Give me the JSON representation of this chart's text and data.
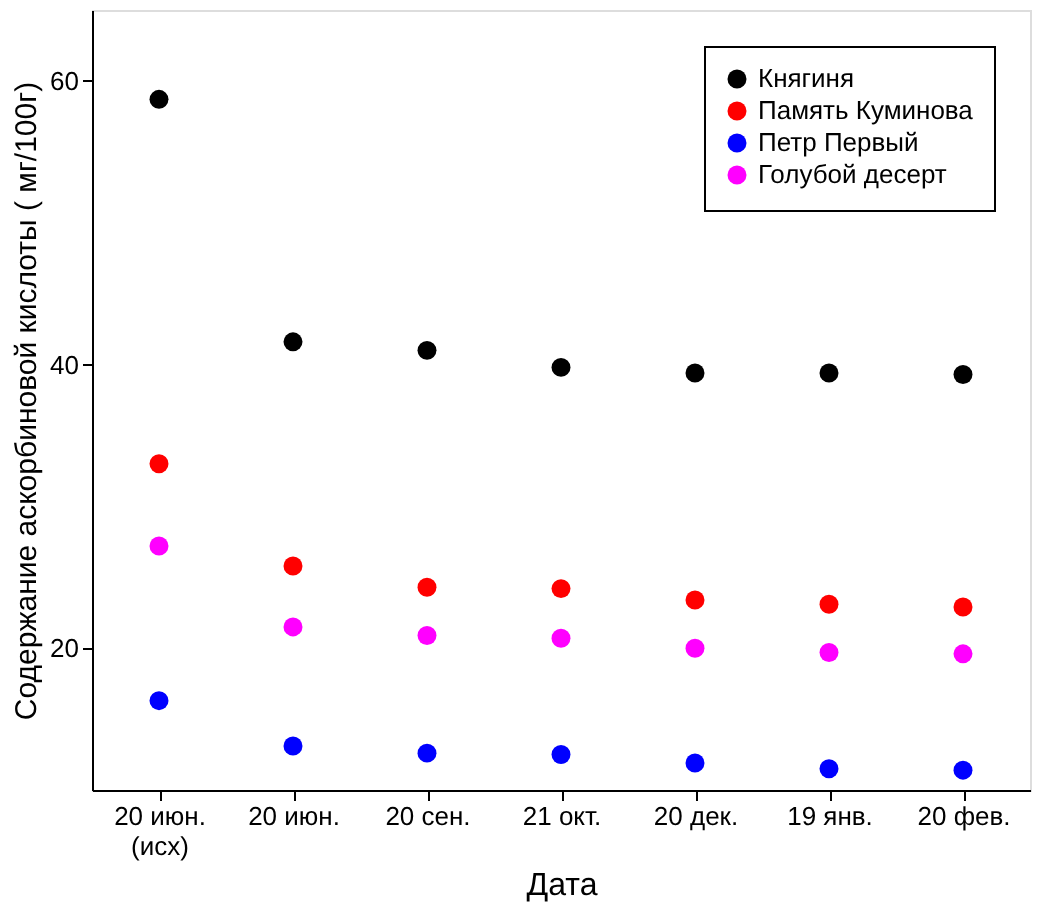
{
  "chart_data": {
    "type": "scatter",
    "xlabel": "Дата",
    "ylabel": "Содержание аскорбиновой кислоты  ( мг/100г)",
    "categories": [
      "20 июн.\n(исх)",
      "20 июн.",
      "20 сен.",
      "21 окт.",
      "20 дек.",
      "19 янв.",
      "20 фев."
    ],
    "series": [
      {
        "name": "Княгиня",
        "color": "#000000",
        "values": [
          58.7,
          41.6,
          41.0,
          39.8,
          39.4,
          39.4,
          39.3
        ]
      },
      {
        "name": "Память Куминова",
        "color": "#ff0000",
        "values": [
          33.0,
          25.8,
          24.3,
          24.2,
          23.4,
          23.1,
          22.9
        ]
      },
      {
        "name": "Петр Первый",
        "color": "#0000ff",
        "values": [
          16.3,
          13.1,
          12.6,
          12.5,
          11.9,
          11.5,
          11.4
        ]
      },
      {
        "name": "Голубой десерт",
        "color": "#ff00ff",
        "values": [
          27.2,
          21.5,
          20.9,
          20.7,
          20.0,
          19.7,
          19.6
        ]
      }
    ],
    "ylim": [
      10,
      65
    ],
    "yticks": [
      20,
      40,
      60
    ],
    "grid": false,
    "legend": "top right",
    "marker": "circle"
  }
}
